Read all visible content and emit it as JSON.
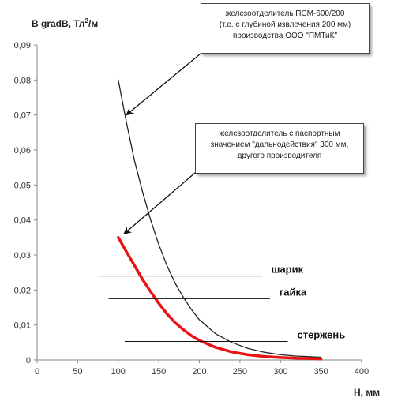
{
  "chart_data": {
    "type": "line",
    "ylabel_main": "B gradB, Тл",
    "ylabel_sup": "2",
    "ylabel_tail": "/м",
    "xlabel": "H, мм",
    "xlim": [
      0,
      400
    ],
    "ylim": [
      0,
      0.09
    ],
    "x_ticks": [
      "0",
      "50",
      "100",
      "150",
      "200",
      "250",
      "300",
      "350",
      "400"
    ],
    "y_ticks": [
      "0",
      "0,01",
      "0,02",
      "0,03",
      "0,04",
      "0,05",
      "0,06",
      "0,07",
      "0,08",
      "0,09"
    ],
    "grid": false,
    "series": [
      {
        "color": "#222222",
        "x": [
          100,
          110,
          120,
          130,
          140,
          150,
          160,
          170,
          180,
          190,
          200,
          220,
          240,
          260,
          280,
          300,
          320,
          340,
          350
        ],
        "y": [
          0.08,
          0.068,
          0.057,
          0.048,
          0.04,
          0.033,
          0.027,
          0.022,
          0.018,
          0.0145,
          0.0115,
          0.0075,
          0.005,
          0.0033,
          0.0022,
          0.0015,
          0.0011,
          0.0009,
          0.0008
        ]
      },
      {
        "color": "#ee1111",
        "x": [
          100,
          110,
          120,
          130,
          140,
          150,
          160,
          170,
          180,
          190,
          200,
          220,
          240,
          260,
          280,
          300,
          320,
          340,
          350
        ],
        "y": [
          0.035,
          0.031,
          0.027,
          0.023,
          0.0195,
          0.0162,
          0.0132,
          0.0107,
          0.0087,
          0.007,
          0.0056,
          0.0036,
          0.0023,
          0.0015,
          0.001,
          0.0007,
          0.0005,
          0.0004,
          0.0003
        ]
      }
    ],
    "reference_lines": [
      {
        "label": "шарик",
        "x1": 76,
        "x2": 277,
        "y": 0.024
      },
      {
        "label": "гайка",
        "x1": 88,
        "x2": 287,
        "y": 0.0175
      },
      {
        "label": "стержень",
        "x1": 108,
        "x2": 309,
        "y": 0.0053
      }
    ]
  },
  "callouts": [
    {
      "lines": [
        "железоотделитель ПСМ-600/200",
        "(т.е. с глубиной извлечения  200 мм)",
        "производства ООО \"ПМТиК\""
      ],
      "target_x": 110,
      "target_y": 0.07
    },
    {
      "lines": [
        "железоотделитель с паспортным",
        "значением \"дальнодействия\" 300 мм,",
        "другого производителя"
      ],
      "target_x": 107,
      "target_y": 0.036
    }
  ]
}
